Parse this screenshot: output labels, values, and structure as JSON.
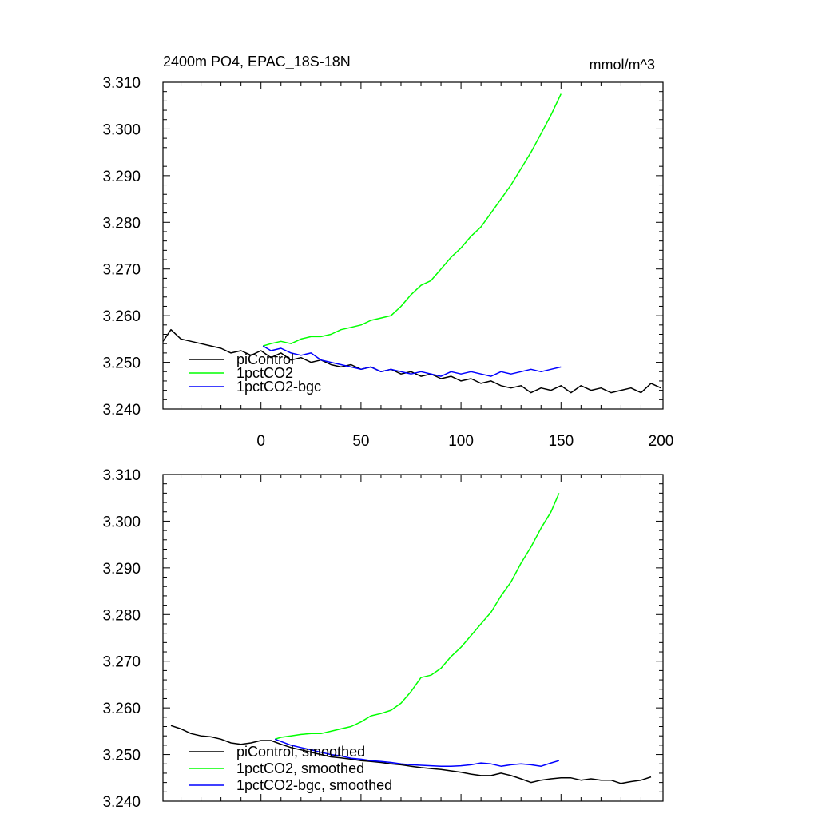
{
  "figure": {
    "title_left": "2400m PO4, EPAC_18S-18N",
    "title_right": "mmol/m^3"
  },
  "chart_data": [
    {
      "type": "line",
      "title": "2400m PO4, EPAC_18S-18N",
      "units": "mmol/m^3",
      "xlim": [
        -49,
        201
      ],
      "ylim": [
        3.24,
        3.31
      ],
      "x_ticks": [
        0,
        50,
        100,
        150,
        200
      ],
      "x_tick_labels": [
        "0",
        "50",
        "100",
        "150",
        "200"
      ],
      "y_ticks": [
        3.24,
        3.25,
        3.26,
        3.27,
        3.28,
        3.29,
        3.3,
        3.31
      ],
      "y_tick_labels": [
        "3.240",
        "3.250",
        "3.260",
        "3.270",
        "3.280",
        "3.290",
        "3.300",
        "3.310"
      ],
      "grid": false,
      "legend_position": "bottom-left",
      "series": [
        {
          "name": "piControl",
          "color": "#000000",
          "x": [
            -49,
            -45,
            -40,
            -35,
            -30,
            -25,
            -20,
            -15,
            -10,
            -5,
            0,
            5,
            10,
            15,
            20,
            25,
            30,
            35,
            40,
            45,
            50,
            55,
            60,
            65,
            70,
            75,
            80,
            85,
            90,
            95,
            100,
            105,
            110,
            115,
            120,
            125,
            130,
            135,
            140,
            145,
            150,
            155,
            160,
            165,
            170,
            175,
            180,
            185,
            190,
            195,
            200
          ],
          "y": [
            3.2545,
            3.257,
            3.255,
            3.2545,
            3.254,
            3.2535,
            3.253,
            3.252,
            3.2525,
            3.2515,
            3.2525,
            3.251,
            3.252,
            3.2505,
            3.251,
            3.25,
            3.2505,
            3.2495,
            3.249,
            3.2495,
            3.2485,
            3.249,
            3.248,
            3.2485,
            3.2475,
            3.248,
            3.247,
            3.2475,
            3.2465,
            3.247,
            3.246,
            3.2465,
            3.2455,
            3.246,
            3.245,
            3.2445,
            3.245,
            3.2435,
            3.2445,
            3.244,
            3.245,
            3.2435,
            3.245,
            3.244,
            3.2445,
            3.2435,
            3.244,
            3.2445,
            3.2435,
            3.2455,
            3.2445
          ]
        },
        {
          "name": "1pctCO2",
          "color": "#00ff00",
          "x": [
            1,
            5,
            10,
            15,
            20,
            25,
            30,
            35,
            40,
            45,
            50,
            55,
            60,
            65,
            70,
            75,
            80,
            85,
            90,
            95,
            100,
            105,
            110,
            115,
            120,
            125,
            130,
            135,
            140,
            145,
            150
          ],
          "y": [
            3.2535,
            3.254,
            3.2545,
            3.254,
            3.255,
            3.2555,
            3.2555,
            3.256,
            3.257,
            3.2575,
            3.258,
            3.259,
            3.2595,
            3.26,
            3.262,
            3.2645,
            3.2665,
            3.2675,
            3.27,
            3.2725,
            3.2745,
            3.277,
            3.279,
            3.282,
            3.285,
            3.288,
            3.2915,
            3.295,
            3.299,
            3.303,
            3.3075
          ]
        },
        {
          "name": "1pctCO2-bgc",
          "color": "#0000ff",
          "x": [
            1,
            5,
            10,
            15,
            20,
            25,
            30,
            35,
            40,
            45,
            50,
            55,
            60,
            65,
            70,
            75,
            80,
            85,
            90,
            95,
            100,
            105,
            110,
            115,
            120,
            125,
            130,
            135,
            140,
            145,
            150
          ],
          "y": [
            3.2535,
            3.2525,
            3.253,
            3.252,
            3.2515,
            3.252,
            3.2505,
            3.25,
            3.2495,
            3.249,
            3.2485,
            3.249,
            3.248,
            3.2485,
            3.248,
            3.2475,
            3.248,
            3.2475,
            3.247,
            3.248,
            3.2475,
            3.248,
            3.2475,
            3.247,
            3.248,
            3.2475,
            3.248,
            3.2485,
            3.248,
            3.2485,
            3.249
          ]
        }
      ]
    },
    {
      "type": "line",
      "xlim": [
        -49,
        201
      ],
      "ylim": [
        3.24,
        3.31
      ],
      "x_ticks": [
        0,
        50,
        100,
        150,
        200
      ],
      "y_ticks": [
        3.24,
        3.25,
        3.26,
        3.27,
        3.28,
        3.29,
        3.3,
        3.31
      ],
      "y_tick_labels": [
        "3.240",
        "3.250",
        "3.260",
        "3.270",
        "3.280",
        "3.290",
        "3.300",
        "3.310"
      ],
      "grid": false,
      "legend_position": "bottom-left",
      "series": [
        {
          "name": "piControl, smoothed",
          "color": "#000000",
          "x": [
            -45,
            -40,
            -35,
            -30,
            -25,
            -20,
            -15,
            -10,
            -5,
            0,
            5,
            10,
            15,
            20,
            25,
            30,
            35,
            40,
            45,
            50,
            55,
            60,
            65,
            70,
            75,
            80,
            85,
            90,
            95,
            100,
            105,
            110,
            115,
            120,
            125,
            130,
            135,
            140,
            145,
            150,
            155,
            160,
            165,
            170,
            175,
            180,
            185,
            190,
            195
          ],
          "y": [
            3.2562,
            3.2555,
            3.2545,
            3.254,
            3.2538,
            3.2533,
            3.2525,
            3.2522,
            3.2525,
            3.253,
            3.253,
            3.2522,
            3.2515,
            3.251,
            3.2505,
            3.25,
            3.2495,
            3.2493,
            3.249,
            3.2487,
            3.2485,
            3.2483,
            3.248,
            3.2478,
            3.2475,
            3.2472,
            3.247,
            3.2468,
            3.2465,
            3.2462,
            3.2458,
            3.2455,
            3.2455,
            3.246,
            3.2455,
            3.2448,
            3.244,
            3.2445,
            3.2448,
            3.245,
            3.245,
            3.2445,
            3.2448,
            3.2445,
            3.2445,
            3.2438,
            3.2442,
            3.2445,
            3.2452
          ]
        },
        {
          "name": "1pctCO2, smoothed",
          "color": "#00ff00",
          "x": [
            7,
            10,
            15,
            20,
            25,
            30,
            35,
            40,
            45,
            50,
            55,
            60,
            65,
            70,
            75,
            80,
            85,
            90,
            95,
            100,
            105,
            110,
            115,
            120,
            125,
            130,
            135,
            140,
            145,
            149
          ],
          "y": [
            3.2533,
            3.2537,
            3.254,
            3.2543,
            3.2545,
            3.2545,
            3.255,
            3.2555,
            3.256,
            3.257,
            3.2583,
            3.2588,
            3.2595,
            3.261,
            3.2635,
            3.2665,
            3.267,
            3.2685,
            3.271,
            3.273,
            3.2755,
            3.278,
            3.2805,
            3.284,
            3.287,
            3.291,
            3.2945,
            3.2985,
            3.302,
            3.306
          ]
        },
        {
          "name": "1pctCO2-bgc, smoothed",
          "color": "#0000ff",
          "x": [
            7,
            10,
            15,
            20,
            25,
            30,
            35,
            40,
            45,
            50,
            55,
            60,
            65,
            70,
            75,
            80,
            85,
            90,
            95,
            100,
            105,
            110,
            115,
            120,
            125,
            130,
            135,
            140,
            145,
            149
          ],
          "y": [
            3.2533,
            3.2528,
            3.252,
            3.2515,
            3.251,
            3.2505,
            3.25,
            3.2497,
            3.2492,
            3.249,
            3.2487,
            3.2485,
            3.2483,
            3.248,
            3.2478,
            3.2477,
            3.2476,
            3.2475,
            3.2475,
            3.2476,
            3.2478,
            3.2482,
            3.248,
            3.2475,
            3.2478,
            3.248,
            3.2478,
            3.2475,
            3.2482,
            3.2487
          ]
        }
      ]
    }
  ]
}
